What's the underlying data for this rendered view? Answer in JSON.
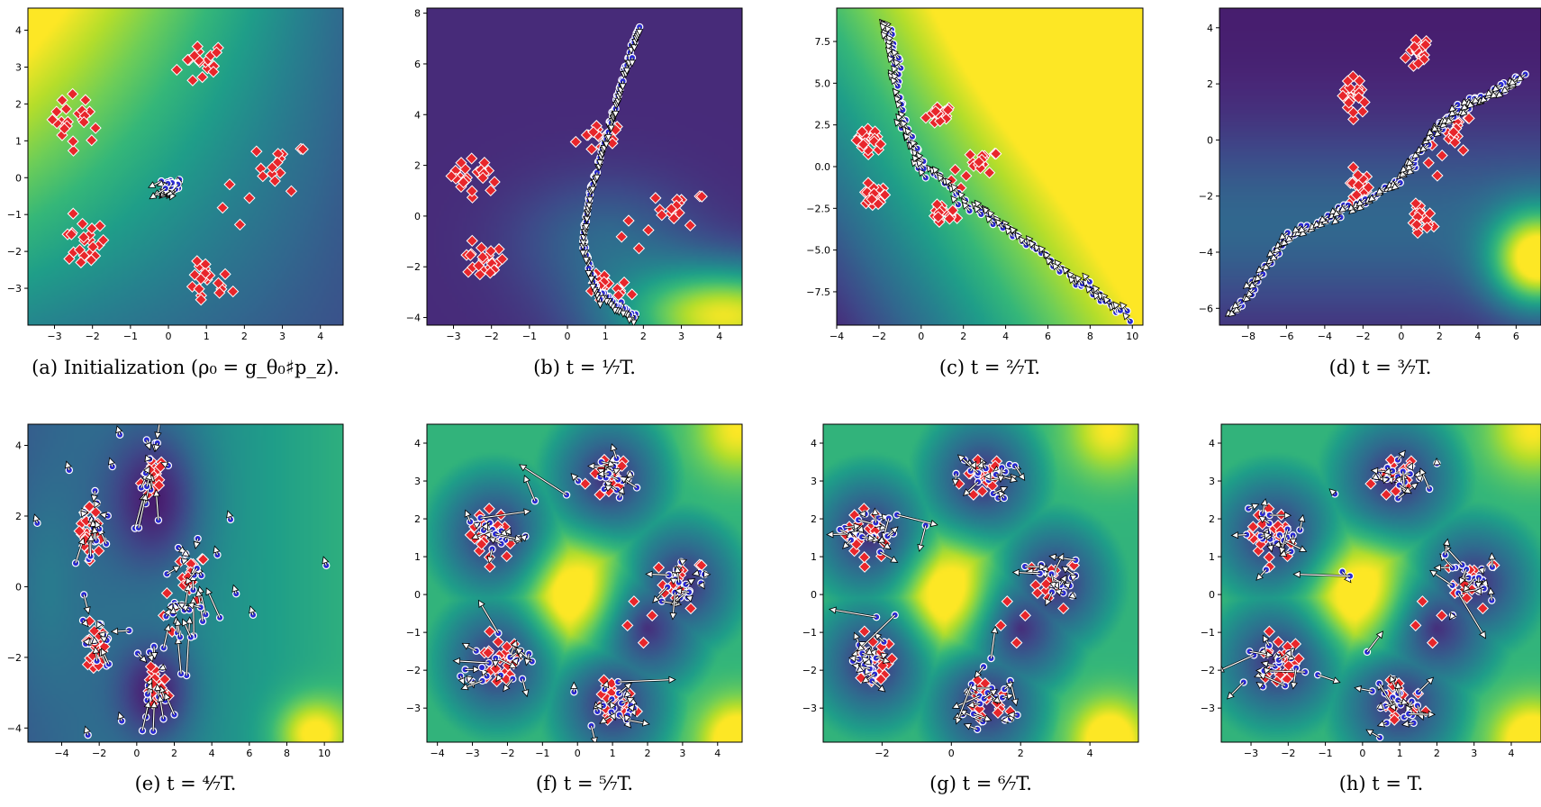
{
  "colormap": [
    "#440154",
    "#482878",
    "#3e4989",
    "#31688e",
    "#26828e",
    "#1f9e89",
    "#35b779",
    "#6ece58",
    "#b5de2b",
    "#fde725"
  ],
  "marker_colors": {
    "target": "#e8262b",
    "particle": "#2b2bd6",
    "arrow": "#ffffff"
  },
  "chart_data": [
    {
      "type": "scatter",
      "caption": "(a) Initialization (ρ₀ = g_θ₀♯p_z).",
      "xlim": [
        -3.7,
        4.6
      ],
      "ylim": [
        -4.0,
        4.6
      ],
      "xticks": [
        "-3",
        "-2",
        "-1",
        "0",
        "1",
        "2",
        "3",
        "4"
      ],
      "yticks": [
        "-3",
        "-2",
        "-1",
        "0",
        "1",
        "2",
        "3",
        "4"
      ],
      "xtick_values": [
        -3,
        -2,
        -1,
        0,
        1,
        2,
        3,
        4
      ],
      "ytick_values": [
        -3,
        -2,
        -1,
        0,
        1,
        2,
        3,
        4
      ],
      "field": "init",
      "particles": {
        "mode": "tight",
        "center": [
          0.1,
          -0.2
        ],
        "spread": 0.25
      }
    },
    {
      "type": "scatter",
      "caption": "(b) t = ¹⁄₇T.",
      "xlim": [
        -3.7,
        4.6
      ],
      "ylim": [
        -4.3,
        8.2
      ],
      "xticks": [
        "-3",
        "-2",
        "-1",
        "0",
        "1",
        "2",
        "3",
        "4"
      ],
      "yticks": [
        "-4",
        "-2",
        "0",
        "2",
        "4",
        "6",
        "8"
      ],
      "xtick_values": [
        -3,
        -2,
        -1,
        0,
        1,
        2,
        3,
        4
      ],
      "ytick_values": [
        -4,
        -2,
        0,
        2,
        4,
        6,
        8
      ],
      "field": "t1",
      "particles": {
        "mode": "curve",
        "points": [
          [
            1.8,
            -3.9
          ],
          [
            0.8,
            -3.0
          ],
          [
            0.4,
            -1.0
          ],
          [
            0.6,
            1.0
          ],
          [
            1.1,
            3.5
          ],
          [
            1.4,
            5.2
          ],
          [
            1.9,
            7.5
          ]
        ]
      }
    },
    {
      "type": "scatter",
      "caption": "(c) t = ²⁄₇T.",
      "xlim": [
        -4.0,
        10.5
      ],
      "ylim": [
        -9.5,
        9.5
      ],
      "xticks": [
        "-4",
        "-2",
        "0",
        "2",
        "4",
        "6",
        "8",
        "10"
      ],
      "yticks": [
        "-7.5",
        "-5.0",
        "-2.5",
        "0.0",
        "2.5",
        "5.0",
        "7.5"
      ],
      "xtick_values": [
        -4,
        -2,
        0,
        2,
        4,
        6,
        8,
        10
      ],
      "ytick_values": [
        -7.5,
        -5.0,
        -2.5,
        0.0,
        2.5,
        5.0,
        7.5
      ],
      "field": "t2",
      "particles": {
        "mode": "curve",
        "points": [
          [
            -1.6,
            8.5
          ],
          [
            -1.2,
            6.5
          ],
          [
            -0.8,
            2.5
          ],
          [
            0.0,
            0.0
          ],
          [
            2.5,
            -2.5
          ],
          [
            5.0,
            -4.5
          ],
          [
            7.5,
            -7.0
          ],
          [
            9.8,
            -9.0
          ]
        ]
      }
    },
    {
      "type": "scatter",
      "caption": "(d) t = ³⁄₇T.",
      "xlim": [
        -9.5,
        7.3
      ],
      "ylim": [
        -6.6,
        4.7
      ],
      "xticks": [
        "-8",
        "-6",
        "-4",
        "-2",
        "0",
        "2",
        "4",
        "6"
      ],
      "yticks": [
        "-6",
        "-4",
        "-2",
        "0",
        "2",
        "4"
      ],
      "xtick_values": [
        -8,
        -6,
        -4,
        -2,
        0,
        2,
        4,
        6
      ],
      "ytick_values": [
        -6,
        -4,
        -2,
        0,
        2,
        4
      ],
      "field": "t3",
      "particles": {
        "mode": "curve",
        "points": [
          [
            -8.7,
            -6.2
          ],
          [
            -6.0,
            -3.5
          ],
          [
            -3.0,
            -2.5
          ],
          [
            0.0,
            -1.5
          ],
          [
            2.0,
            0.5
          ],
          [
            4.0,
            1.5
          ],
          [
            6.5,
            2.3
          ]
        ]
      }
    },
    {
      "type": "scatter",
      "caption": "(e) t = ⁴⁄₇T.",
      "xlim": [
        -5.8,
        11.0
      ],
      "ylim": [
        -4.4,
        4.6
      ],
      "xticks": [
        "-4",
        "-2",
        "0",
        "2",
        "4",
        "6",
        "8",
        "10"
      ],
      "yticks": [
        "-4",
        "-2",
        "0",
        "2",
        "4"
      ],
      "xtick_values": [
        -4,
        -2,
        0,
        2,
        4,
        6,
        8,
        10
      ],
      "ytick_values": [
        -4,
        -2,
        0,
        2,
        4
      ],
      "field": "t4",
      "particles": {
        "mode": "scatter-wide"
      }
    },
    {
      "type": "scatter",
      "caption": "(f) t = ⁵⁄₇T.",
      "xlim": [
        -4.3,
        4.7
      ],
      "ylim": [
        -3.9,
        4.5
      ],
      "xticks": [
        "-4",
        "-3",
        "-2",
        "-1",
        "0",
        "1",
        "2",
        "3",
        "4"
      ],
      "yticks": [
        "-3",
        "-2",
        "-1",
        "0",
        "1",
        "2",
        "3",
        "4"
      ],
      "xtick_values": [
        -4,
        -3,
        -2,
        -1,
        0,
        1,
        2,
        3,
        4
      ],
      "ytick_values": [
        -3,
        -2,
        -1,
        0,
        1,
        2,
        3,
        4
      ],
      "field": "late",
      "particles": {
        "mode": "clusters"
      }
    },
    {
      "type": "scatter",
      "caption": "(g) t = ⁶⁄₇T.",
      "xlim": [
        -3.7,
        5.4
      ],
      "ylim": [
        -3.9,
        4.5
      ],
      "xticks": [
        "-2",
        "0",
        "2",
        "4"
      ],
      "yticks": [
        "-3",
        "-2",
        "-1",
        "0",
        "1",
        "2",
        "3",
        "4"
      ],
      "xtick_values": [
        -2,
        0,
        2,
        4
      ],
      "ytick_values": [
        -3,
        -2,
        -1,
        0,
        1,
        2,
        3,
        4
      ],
      "field": "late",
      "particles": {
        "mode": "clusters"
      }
    },
    {
      "type": "scatter",
      "caption": "(h) t = T.",
      "xlim": [
        -3.8,
        4.8
      ],
      "ylim": [
        -3.9,
        4.5
      ],
      "xticks": [
        "-3",
        "-2",
        "-1",
        "0",
        "1",
        "2",
        "3",
        "4"
      ],
      "yticks": [
        "-3",
        "-2",
        "-1",
        "0",
        "1",
        "2",
        "3",
        "4"
      ],
      "xtick_values": [
        -3,
        -2,
        -1,
        0,
        1,
        2,
        3,
        4
      ],
      "ytick_values": [
        -3,
        -2,
        -1,
        0,
        1,
        2,
        3,
        4
      ],
      "field": "late",
      "particles": {
        "mode": "clusters"
      }
    }
  ],
  "target_clusters": [
    {
      "center": [
        0.9,
        3.1
      ],
      "n": 18
    },
    {
      "center": [
        -2.4,
        1.6
      ],
      "n": 22
    },
    {
      "center": [
        3.0,
        0.3
      ],
      "n": 14
    },
    {
      "center": [
        -2.3,
        -1.8
      ],
      "n": 22
    },
    {
      "center": [
        1.0,
        -2.9
      ],
      "n": 20
    },
    {
      "center": [
        2.0,
        -0.9
      ],
      "n": 4
    }
  ]
}
